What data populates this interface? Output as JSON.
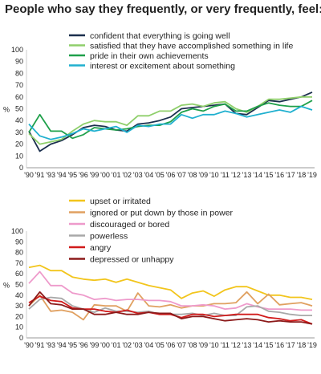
{
  "title": "People who say they frequently, or very frequently, feel:",
  "chart_data": [
    {
      "type": "line",
      "ylabel": "%",
      "ylim": [
        0,
        100
      ],
      "yticks": [
        0,
        10,
        20,
        30,
        40,
        50,
        60,
        70,
        80,
        90,
        100
      ],
      "categories": [
        "'90",
        "'91",
        "'93",
        "'94",
        "'95",
        "'96",
        "'99",
        "'00",
        "'01",
        "'02",
        "'03",
        "'04",
        "'05",
        "'06",
        "'07",
        "'08",
        "'09",
        "'10",
        "'11",
        "'12",
        "'13",
        "'14",
        "'15",
        "'16",
        "'17",
        "'18",
        "'19"
      ],
      "legend_position": "top-right",
      "series": [
        {
          "name": "confident that everything is going well",
          "color": "#1b2f4e",
          "values": [
            31,
            14,
            20,
            23,
            28,
            34,
            36,
            35,
            32,
            31,
            37,
            38,
            40,
            43,
            50,
            51,
            52,
            53,
            54,
            46,
            45,
            51,
            57,
            56,
            58,
            60,
            64
          ]
        },
        {
          "name": "satisfied that they have accomplished something in life",
          "color": "#8fcf6b",
          "values": [
            29,
            20,
            22,
            24,
            31,
            37,
            40,
            39,
            39,
            36,
            44,
            44,
            48,
            48,
            53,
            54,
            52,
            55,
            56,
            50,
            47,
            52,
            58,
            58,
            59,
            60,
            60
          ]
        },
        {
          "name": "pride in their own achievements",
          "color": "#1fa04a",
          "values": [
            30,
            45,
            31,
            31,
            25,
            28,
            34,
            33,
            32,
            33,
            35,
            36,
            36,
            39,
            47,
            50,
            48,
            52,
            54,
            48,
            48,
            52,
            55,
            53,
            52,
            52,
            57
          ]
        },
        {
          "name": "interest or excitement about something",
          "color": "#20b0cf",
          "values": [
            37,
            27,
            24,
            26,
            29,
            33,
            31,
            33,
            35,
            30,
            36,
            35,
            37,
            37,
            45,
            42,
            45,
            45,
            48,
            46,
            43,
            45,
            47,
            49,
            47,
            52,
            49
          ]
        }
      ]
    },
    {
      "type": "line",
      "ylabel": "%",
      "ylim": [
        0,
        100
      ],
      "yticks": [
        0,
        10,
        20,
        30,
        40,
        50,
        60,
        70,
        80,
        90,
        100
      ],
      "categories": [
        "'90",
        "'91",
        "'93",
        "'94",
        "'95",
        "'96",
        "'99",
        "'00",
        "'01",
        "'02",
        "'03",
        "'04",
        "'05",
        "'06",
        "'07",
        "'08",
        "'09",
        "'10",
        "'11",
        "'12",
        "'13",
        "'14",
        "'15",
        "'16",
        "'17",
        "'18",
        "'19"
      ],
      "legend_position": "top-right",
      "series": [
        {
          "name": "upset or irritated",
          "color": "#f2c51c",
          "values": [
            66,
            68,
            63,
            63,
            57,
            55,
            54,
            55,
            52,
            55,
            52,
            49,
            47,
            45,
            37,
            42,
            44,
            39,
            45,
            48,
            48,
            44,
            40,
            40,
            38,
            38,
            36
          ]
        },
        {
          "name": "ignored or put down by those in power",
          "color": "#e0a060",
          "values": [
            30,
            40,
            25,
            26,
            24,
            17,
            31,
            30,
            30,
            25,
            42,
            30,
            29,
            31,
            28,
            30,
            30,
            32,
            32,
            33,
            43,
            32,
            41,
            31,
            32,
            33,
            30
          ]
        },
        {
          "name": "discouraged or bored",
          "color": "#ee9acb",
          "values": [
            51,
            62,
            49,
            49,
            42,
            40,
            36,
            37,
            35,
            36,
            36,
            35,
            35,
            34,
            30,
            30,
            31,
            30,
            27,
            28,
            32,
            29,
            27,
            27,
            27,
            26,
            26
          ]
        },
        {
          "name": "powerless",
          "color": "#a8a8a8",
          "values": [
            27,
            36,
            38,
            37,
            30,
            27,
            24,
            28,
            25,
            25,
            24,
            25,
            22,
            22,
            22,
            23,
            21,
            23,
            21,
            21,
            29,
            30,
            25,
            24,
            22,
            21,
            21
          ]
        },
        {
          "name": "angry",
          "color": "#d11b1b",
          "values": [
            33,
            39,
            35,
            34,
            28,
            27,
            27,
            25,
            24,
            26,
            23,
            24,
            22,
            22,
            19,
            22,
            22,
            20,
            21,
            22,
            22,
            22,
            19,
            18,
            16,
            17,
            13
          ]
        },
        {
          "name": "depressed or unhappy",
          "color": "#8c1a1a",
          "values": [
            30,
            43,
            32,
            31,
            27,
            27,
            22,
            22,
            24,
            22,
            22,
            24,
            23,
            23,
            18,
            20,
            20,
            18,
            16,
            17,
            18,
            17,
            15,
            16,
            15,
            15,
            13
          ]
        }
      ]
    }
  ]
}
